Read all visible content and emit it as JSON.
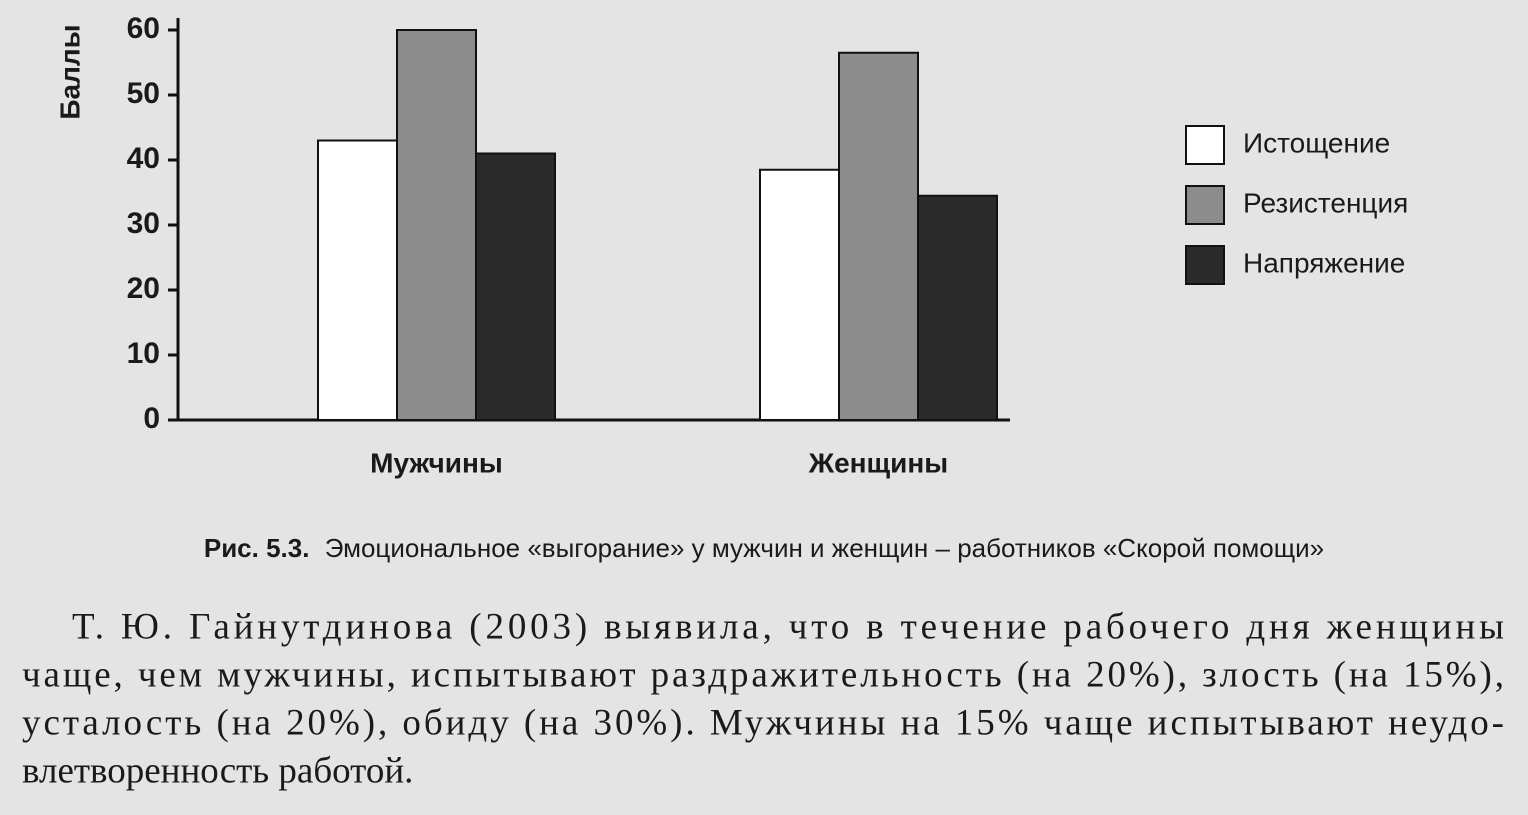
{
  "chart_data": {
    "type": "bar",
    "y_label": "Баллы",
    "categories": [
      "Мужчины",
      "Женщины"
    ],
    "series": [
      {
        "name": "Истощение",
        "color": "#ffffff",
        "values": [
          43,
          38.5
        ]
      },
      {
        "name": "Резистенция",
        "color": "#8c8c8c",
        "values": [
          60,
          56.5
        ]
      },
      {
        "name": "Напряжение",
        "color": "#2b2b2b",
        "values": [
          41,
          34.5
        ]
      }
    ],
    "ylim": [
      0,
      60
    ],
    "yticks": [
      0,
      10,
      20,
      30,
      40,
      50,
      60
    ],
    "grid": false,
    "legend": "right"
  },
  "caption": {
    "label": "Рис. 5.3.",
    "text": "Эмоциональное «выгорание» у мужчин и женщин – работников «Скорой помощи»"
  },
  "paragraph": [
    "Т. Ю. Гайнутдинова (2003) выявила, что в течение рабочего дня женщины",
    "чаще, чем мужчины, испытывают раздражительность (на 20%), злость (на 15%),",
    "усталость (на 20%), обиду (на 30%). Мужчины на 15% чаще испытывают неудо-",
    "влетворенность работой."
  ]
}
